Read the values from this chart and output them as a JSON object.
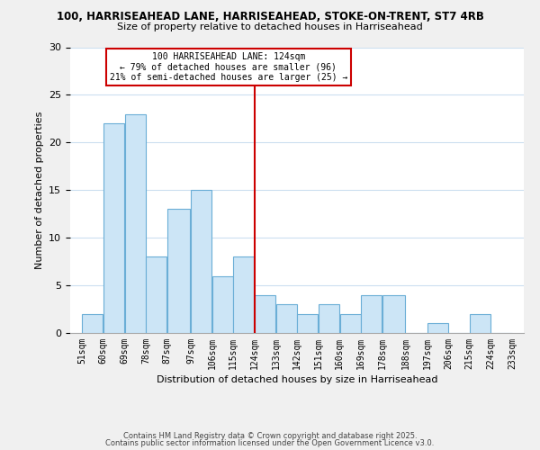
{
  "title1": "100, HARRISEAHEAD LANE, HARRISEAHEAD, STOKE-ON-TRENT, ST7 4RB",
  "title2": "Size of property relative to detached houses in Harriseahead",
  "xlabel": "Distribution of detached houses by size in Harriseahead",
  "ylabel": "Number of detached properties",
  "bins": [
    51,
    60,
    69,
    78,
    87,
    97,
    106,
    115,
    124,
    133,
    142,
    151,
    160,
    169,
    178,
    188,
    197,
    206,
    215,
    224,
    233
  ],
  "bin_labels": [
    "51sqm",
    "60sqm",
    "69sqm",
    "78sqm",
    "87sqm",
    "97sqm",
    "106sqm",
    "115sqm",
    "124sqm",
    "133sqm",
    "142sqm",
    "151sqm",
    "160sqm",
    "169sqm",
    "178sqm",
    "188sqm",
    "197sqm",
    "206sqm",
    "215sqm",
    "224sqm",
    "233sqm"
  ],
  "counts": [
    2,
    22,
    23,
    8,
    13,
    15,
    6,
    8,
    4,
    3,
    2,
    3,
    2,
    4,
    4,
    0,
    1,
    0,
    2,
    0
  ],
  "bar_color": "#cce5f6",
  "bar_edge_color": "#6aaed6",
  "grid_color": "#ccdff0",
  "vline_x": 124,
  "vline_color": "#cc0000",
  "annotation_text": "100 HARRISEAHEAD LANE: 124sqm\n← 79% of detached houses are smaller (96)\n21% of semi-detached houses are larger (25) →",
  "annotation_box_color": "#cc0000",
  "ylim": [
    0,
    30
  ],
  "yticks": [
    0,
    5,
    10,
    15,
    20,
    25,
    30
  ],
  "footer1": "Contains HM Land Registry data © Crown copyright and database right 2025.",
  "footer2": "Contains public sector information licensed under the Open Government Licence v3.0.",
  "bg_color": "#f0f0f0",
  "plot_bg_color": "#ffffff"
}
